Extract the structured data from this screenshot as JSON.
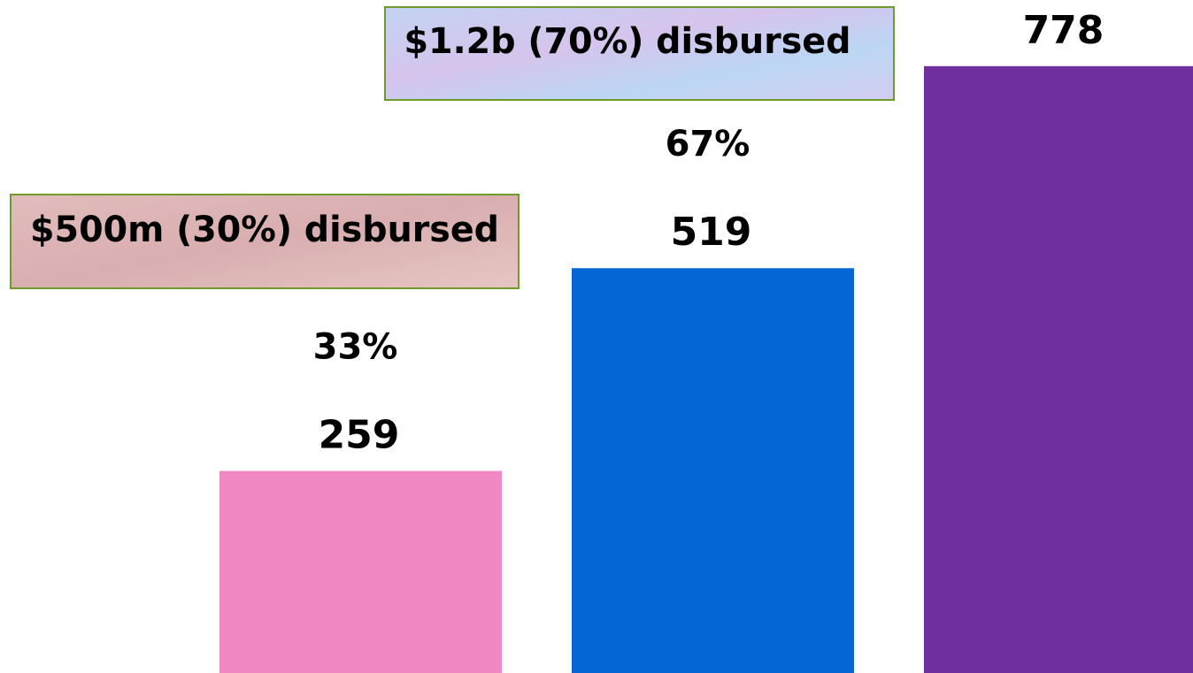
{
  "chart_data": {
    "type": "bar",
    "categories": [
      null,
      null,
      null
    ],
    "series": [
      {
        "values": [
          259,
          519,
          778
        ],
        "colors": [
          "#f287c5",
          "#0567d3",
          "#6f2f9f"
        ]
      }
    ],
    "percent_labels": [
      "33%",
      "67%",
      null
    ],
    "annotations": [
      "$500m (30%) disbursed",
      "$1.2b (70%) disbursed"
    ]
  }
}
